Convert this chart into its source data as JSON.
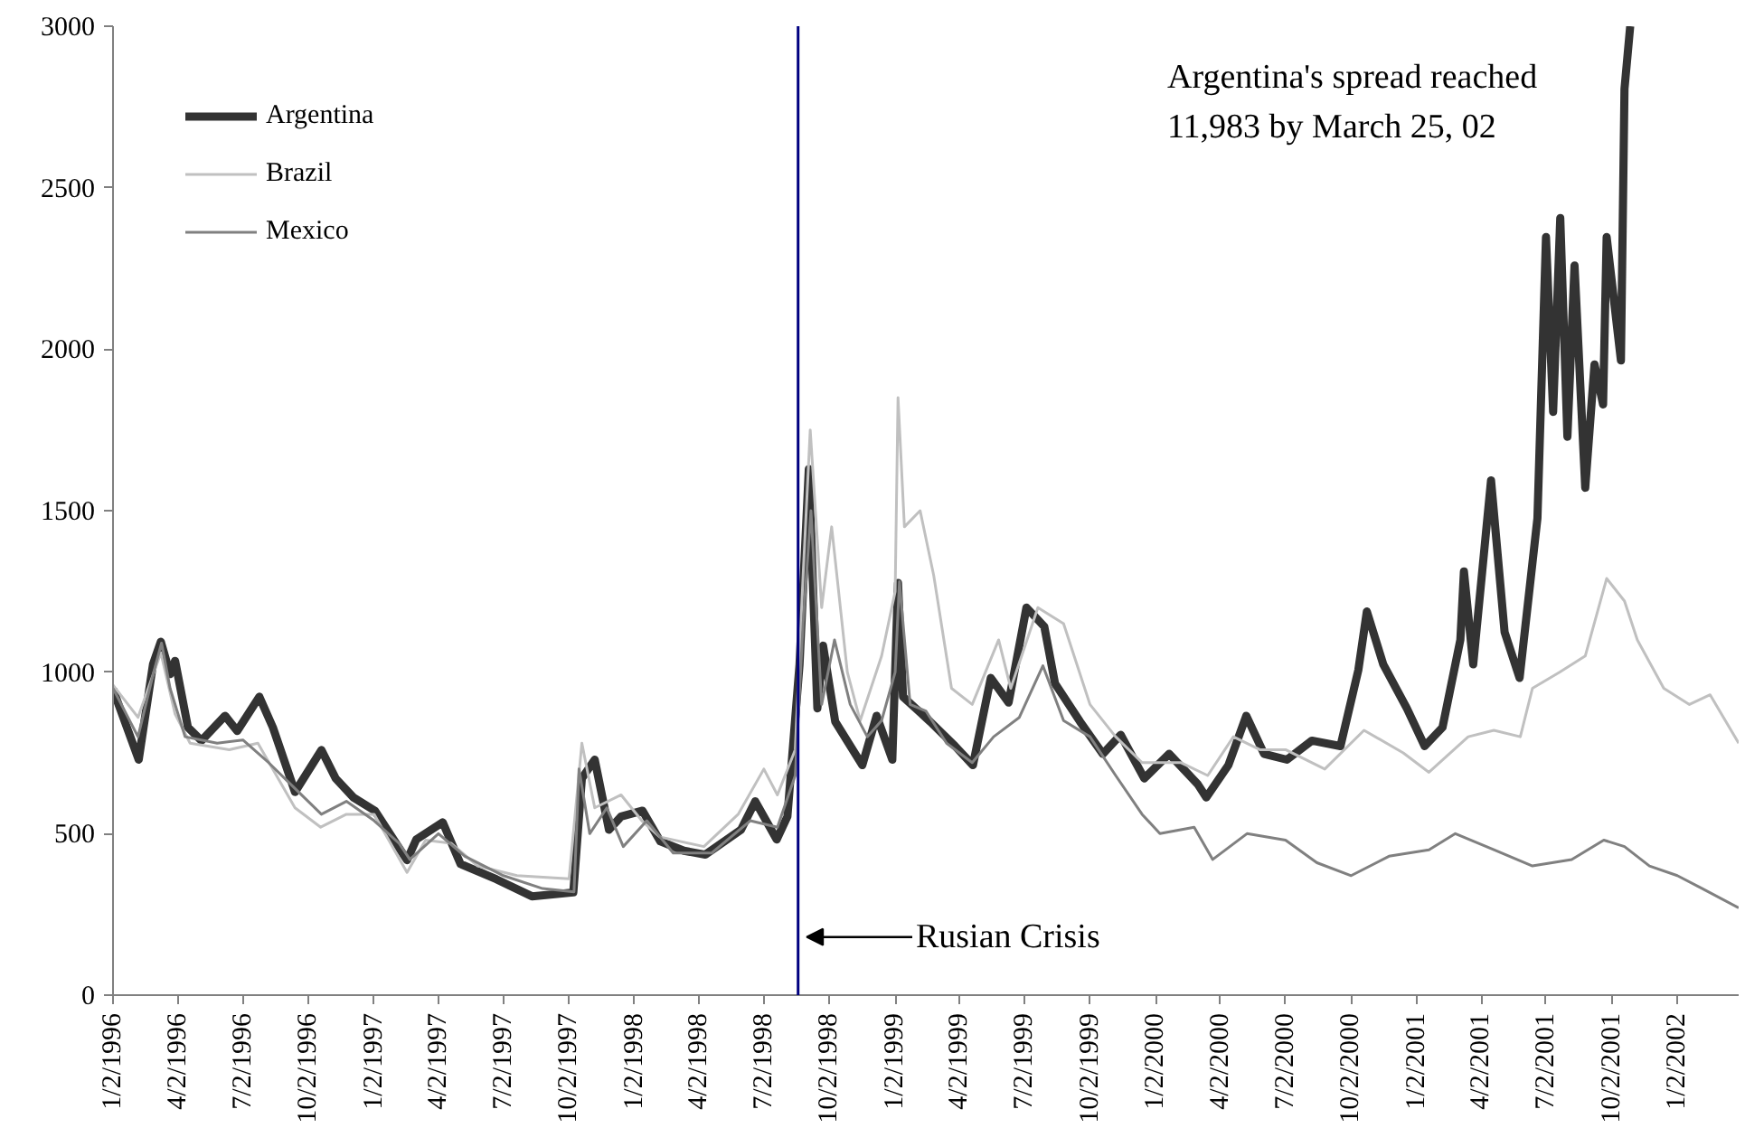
{
  "chart_data": {
    "type": "line",
    "xlim": [
      "1996-01-02",
      "2002-03-29"
    ],
    "ylim": [
      0,
      3000
    ],
    "yticks": [
      0,
      500,
      1000,
      1500,
      2000,
      2500,
      3000
    ],
    "xticks": [
      {
        "value": "1996-01-02",
        "label": "1/2/1996"
      },
      {
        "value": "1996-04-02",
        "label": "4/2/1996"
      },
      {
        "value": "1996-07-02",
        "label": "7/2/1996"
      },
      {
        "value": "1996-10-02",
        "label": "10/2/1996"
      },
      {
        "value": "1997-01-02",
        "label": "1/2/1997"
      },
      {
        "value": "1997-04-02",
        "label": "4/2/1997"
      },
      {
        "value": "1997-07-02",
        "label": "7/2/1997"
      },
      {
        "value": "1997-10-02",
        "label": "10/2/1997"
      },
      {
        "value": "1998-01-02",
        "label": "1/2/1998"
      },
      {
        "value": "1998-04-02",
        "label": "4/2/1998"
      },
      {
        "value": "1998-07-02",
        "label": "7/2/1998"
      },
      {
        "value": "1998-10-02",
        "label": "10/2/1998"
      },
      {
        "value": "1999-01-02",
        "label": "1/2/1999"
      },
      {
        "value": "1999-04-02",
        "label": "4/2/1999"
      },
      {
        "value": "1999-07-02",
        "label": "7/2/1999"
      },
      {
        "value": "1999-10-02",
        "label": "10/2/1999"
      },
      {
        "value": "2000-01-02",
        "label": "1/2/2000"
      },
      {
        "value": "2000-04-02",
        "label": "4/2/2000"
      },
      {
        "value": "2000-07-02",
        "label": "7/2/2000"
      },
      {
        "value": "2000-10-02",
        "label": "10/2/2000"
      },
      {
        "value": "2001-01-02",
        "label": "1/2/2001"
      },
      {
        "value": "2001-04-02",
        "label": "4/2/2001"
      },
      {
        "value": "2001-07-02",
        "label": "7/2/2001"
      },
      {
        "value": "2001-10-02",
        "label": "10/2/2001"
      },
      {
        "value": "2002-01-02",
        "label": "1/2/2002"
      }
    ],
    "grid": false,
    "legend": "top left",
    "annotations": [
      "Argentina's spread reached\n11,983 by March 25, 02"
    ],
    "ref_lines": [
      {
        "axis": "x",
        "value": "1998-08-19",
        "label": "Rusian Crisis",
        "color": "#000080"
      }
    ],
    "series": [
      {
        "name": "Argentina",
        "color": "#333333",
        "x": [
          "1996-01-02",
          "1996-02-07",
          "1996-02-27",
          "1996-03-09",
          "1996-03-22",
          "1996-03-29",
          "1996-04-16",
          "1996-05-05",
          "1996-06-07",
          "1996-06-24",
          "1996-07-25",
          "1996-08-13",
          "1996-09-13",
          "1996-10-20",
          "1996-11-09",
          "1996-12-04",
          "1997-01-03",
          "1997-02-17",
          "1997-03-02",
          "1997-04-08",
          "1997-05-03",
          "1997-06-22",
          "1997-08-11",
          "1997-10-08",
          "1997-10-20",
          "1997-11-07",
          "1997-11-27",
          "1997-12-14",
          "1998-01-13",
          "1998-02-07",
          "1998-03-12",
          "1998-04-11",
          "1998-05-31",
          "1998-06-20",
          "1998-07-20",
          "1998-08-04",
          "1998-08-21",
          "1998-09-03",
          "1998-09-15",
          "1998-09-23",
          "1998-10-10",
          "1998-11-17",
          "1998-12-07",
          "1998-12-29",
          "1999-01-06",
          "1999-01-13",
          "1999-02-20",
          "1999-03-27",
          "1999-04-21",
          "1999-05-16",
          "1999-06-10",
          "1999-07-05",
          "1999-07-30",
          "1999-08-14",
          "1999-09-18",
          "1999-10-20",
          "1999-11-14",
          "1999-12-17",
          "2000-01-21",
          "2000-03-01",
          "2000-03-13",
          "2000-04-13",
          "2000-05-08",
          "2000-06-02",
          "2000-07-04",
          "2000-08-08",
          "2000-09-17",
          "2000-10-12",
          "2000-10-24",
          "2000-11-16",
          "2000-12-19",
          "2001-01-13",
          "2001-02-07",
          "2001-03-04",
          "2001-03-09",
          "2001-03-22",
          "2001-04-16",
          "2001-05-05",
          "2001-05-26",
          "2001-06-20",
          "2001-07-02",
          "2001-07-12",
          "2001-07-22",
          "2001-08-01",
          "2001-08-11",
          "2001-08-26",
          "2001-09-08",
          "2001-09-20",
          "2001-09-25",
          "2001-10-15",
          "2001-10-20",
          "2001-10-28"
        ],
        "values": [
          947,
          729,
          1024,
          1094,
          994,
          1035,
          829,
          788,
          865,
          818,
          924,
          829,
          629,
          759,
          671,
          612,
          571,
          418,
          482,
          535,
          406,
          359,
          306,
          318,
          671,
          729,
          512,
          553,
          571,
          476,
          447,
          435,
          512,
          600,
          482,
          553,
          1024,
          1629,
          888,
          1082,
          847,
          712,
          865,
          729,
          1276,
          924,
          847,
          771,
          712,
          982,
          906,
          1200,
          1141,
          965,
          847,
          747,
          806,
          671,
          747,
          653,
          612,
          712,
          865,
          747,
          729,
          788,
          771,
          1006,
          1188,
          1024,
          888,
          771,
          829,
          1100,
          1312,
          1024,
          1594,
          1124,
          982,
          1476,
          2347,
          1806,
          2406,
          1729,
          2259,
          1571,
          1953,
          1829,
          2347,
          1965,
          2806,
          3000
        ]
      },
      {
        "name": "Brazil",
        "color": "#c0c0c0",
        "x": [
          "1996-01-02",
          "1996-02-06",
          "1996-03-09",
          "1996-03-29",
          "1996-04-19",
          "1996-06-13",
          "1996-07-23",
          "1996-09-13",
          "1996-10-19",
          "1996-11-24",
          "1997-01-02",
          "1997-02-17",
          "1997-03-15",
          "1997-04-20",
          "1997-05-27",
          "1997-07-21",
          "1997-10-02",
          "1997-10-20",
          "1997-11-07",
          "1997-12-14",
          "1998-01-12",
          "1998-02-06",
          "1998-04-09",
          "1998-05-27",
          "1998-07-02",
          "1998-07-21",
          "1998-08-15",
          "1998-08-26",
          "1998-09-05",
          "1998-09-21",
          "1998-10-05",
          "1998-10-27",
          "1998-11-14",
          "1998-12-14",
          "1999-01-02",
          "1999-01-06",
          "1999-01-15",
          "1999-02-06",
          "1999-02-25",
          "1999-03-22",
          "1999-04-20",
          "1999-05-27",
          "1999-06-13",
          "1999-07-21",
          "1999-08-26",
          "1999-10-02",
          "1999-11-07",
          "1999-12-14",
          "2000-02-06",
          "2000-03-15",
          "2000-04-20",
          "2000-05-27",
          "2000-07-02",
          "2000-08-26",
          "2000-10-20",
          "2000-12-14",
          "2001-01-19",
          "2001-03-15",
          "2001-04-20",
          "2001-05-27",
          "2001-06-13",
          "2001-07-21",
          "2001-08-26",
          "2001-09-25",
          "2001-10-20",
          "2001-11-07",
          "2001-12-14",
          "2002-01-19",
          "2002-02-17",
          "2002-03-29"
        ],
        "values": [
          960,
          860,
          1060,
          870,
          780,
          760,
          780,
          580,
          520,
          560,
          560,
          380,
          480,
          470,
          400,
          370,
          360,
          780,
          580,
          620,
          540,
          490,
          460,
          560,
          700,
          620,
          760,
          1300,
          1750,
          1200,
          1450,
          1000,
          850,
          1050,
          1250,
          1850,
          1450,
          1500,
          1300,
          950,
          900,
          1100,
          950,
          1200,
          1150,
          900,
          800,
          720,
          720,
          680,
          800,
          760,
          760,
          700,
          820,
          750,
          690,
          800,
          820,
          800,
          950,
          1000,
          1050,
          1290,
          1220,
          1100,
          950,
          900,
          930,
          780
        ]
      },
      {
        "name": "Mexico",
        "color": "#808080",
        "x": [
          "1996-01-02",
          "1996-02-06",
          "1996-02-28",
          "1996-03-10",
          "1996-03-22",
          "1996-04-12",
          "1996-05-27",
          "1996-07-02",
          "1996-08-07",
          "1996-09-13",
          "1996-10-20",
          "1996-11-24",
          "1997-01-02",
          "1997-02-06",
          "1997-02-21",
          "1997-04-02",
          "1997-05-09",
          "1997-07-02",
          "1997-08-26",
          "1997-10-09",
          "1997-10-16",
          "1997-10-31",
          "1997-11-24",
          "1997-12-17",
          "1998-01-19",
          "1998-02-25",
          "1998-04-20",
          "1998-06-13",
          "1998-07-21",
          "1998-08-15",
          "1998-08-26",
          "1998-09-06",
          "1998-09-21",
          "1998-10-09",
          "1998-10-31",
          "1998-11-24",
          "1998-12-14",
          "1999-01-02",
          "1999-01-08",
          "1999-01-23",
          "1999-02-14",
          "1999-03-15",
          "1999-04-20",
          "1999-05-20",
          "1999-06-25",
          "1999-07-28",
          "1999-08-26",
          "1999-10-02",
          "1999-11-07",
          "1999-12-14",
          "2000-01-08",
          "2000-02-25",
          "2000-03-22",
          "2000-05-09",
          "2000-07-02",
          "2000-08-15",
          "2000-10-02",
          "2000-11-24",
          "2001-01-19",
          "2001-02-25",
          "2001-04-20",
          "2001-06-13",
          "2001-08-07",
          "2001-09-21",
          "2001-10-20",
          "2001-11-24",
          "2002-01-02",
          "2002-02-06",
          "2002-03-29"
        ],
        "values": [
          950,
          800,
          1000,
          1090,
          950,
          800,
          780,
          790,
          720,
          640,
          560,
          600,
          540,
          470,
          420,
          500,
          430,
          370,
          330,
          320,
          700,
          500,
          580,
          460,
          540,
          440,
          440,
          540,
          520,
          680,
          1150,
          1500,
          900,
          1100,
          900,
          800,
          850,
          1000,
          1280,
          900,
          880,
          780,
          720,
          800,
          860,
          1020,
          850,
          800,
          680,
          560,
          500,
          520,
          420,
          500,
          480,
          410,
          370,
          430,
          450,
          500,
          450,
          400,
          420,
          480,
          460,
          400,
          370,
          330,
          270
        ]
      }
    ]
  }
}
